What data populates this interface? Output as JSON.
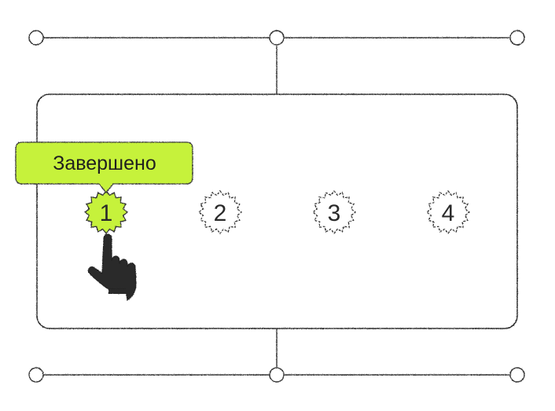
{
  "tooltip": {
    "label": "Завершено"
  },
  "stepper": {
    "steps": [
      {
        "label": "1",
        "state": "completed"
      },
      {
        "label": "2",
        "state": "pending"
      },
      {
        "label": "3",
        "state": "pending"
      },
      {
        "label": "4",
        "state": "pending"
      }
    ]
  },
  "colors": {
    "accent": "#c6f23a",
    "ink": "#2a2a2a",
    "background": "#ffffff"
  },
  "icons": {
    "cursor": "pointing-hand-icon"
  }
}
